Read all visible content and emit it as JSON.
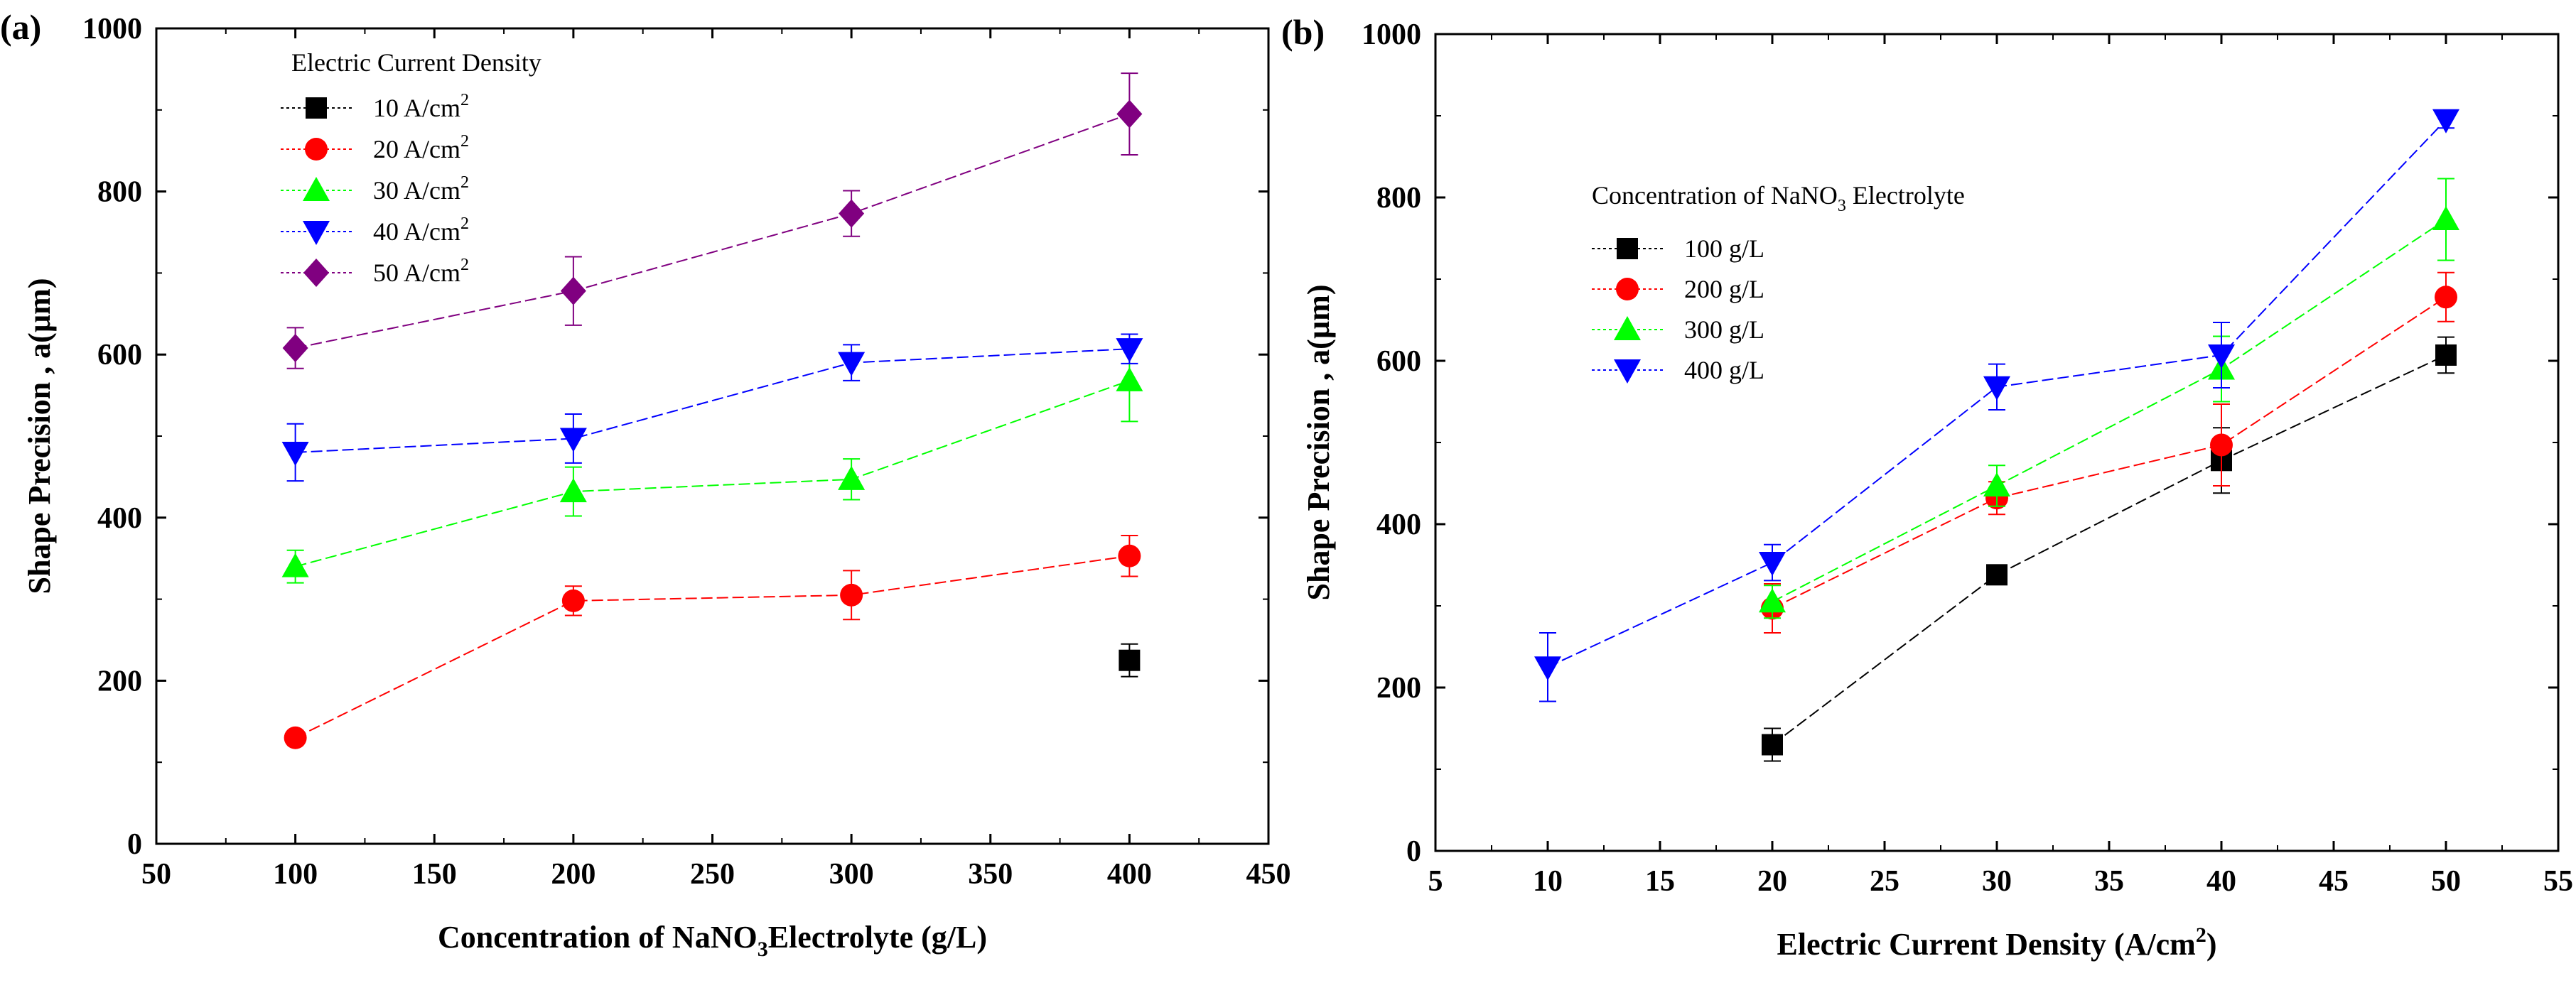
{
  "chart_data": [
    {
      "type": "line",
      "panel_label": "(a)",
      "xlabel_parts": [
        "Concentration of NaNO",
        "3",
        "Electrolyte (g/L)"
      ],
      "ylabel": "Shape Precision , a(µm)",
      "xlim": [
        50,
        450
      ],
      "ylim": [
        0,
        1000
      ],
      "xticks": [
        "50",
        "100",
        "150",
        "200",
        "250",
        "300",
        "350",
        "400",
        "450"
      ],
      "yticks": [
        "0",
        "200",
        "400",
        "600",
        "800",
        "1000"
      ],
      "legend_title": "Electric Current Density",
      "legend_position": "top-left",
      "series": [
        {
          "name": "10 A/cm",
          "sup": "2",
          "marker": "square",
          "color": "#000000",
          "x": [
            400
          ],
          "y": [
            225
          ],
          "err": [
            20
          ]
        },
        {
          "name": "20 A/cm",
          "sup": "2",
          "marker": "circle",
          "color": "#ff0000",
          "x": [
            100,
            200,
            300,
            400
          ],
          "y": [
            130,
            298,
            305,
            353
          ],
          "err": [
            0,
            18,
            30,
            25
          ]
        },
        {
          "name": "30 A/cm",
          "sup": "2",
          "marker": "triangle-up",
          "color": "#00ff00",
          "x": [
            100,
            200,
            300,
            400
          ],
          "y": [
            340,
            432,
            447,
            568
          ],
          "err": [
            20,
            30,
            25,
            50
          ]
        },
        {
          "name": "40 A/cm",
          "sup": "2",
          "marker": "triangle-down",
          "color": "#0000ff",
          "x": [
            100,
            200,
            300,
            400
          ],
          "y": [
            480,
            497,
            590,
            607
          ],
          "err": [
            35,
            30,
            22,
            18
          ]
        },
        {
          "name": "50 A/cm",
          "sup": "2",
          "marker": "diamond",
          "color": "#800080",
          "x": [
            100,
            200,
            300,
            400
          ],
          "y": [
            608,
            678,
            773,
            895
          ],
          "err": [
            25,
            42,
            28,
            50
          ]
        }
      ]
    },
    {
      "type": "line",
      "panel_label": "(b)",
      "xlabel_parts": [
        "Electric Current Density (A/cm",
        "2",
        ")"
      ],
      "ylabel": "Shape Precision , a(µm)",
      "xlim": [
        5,
        55
      ],
      "ylim": [
        0,
        1000
      ],
      "xticks": [
        "5",
        "10",
        "15",
        "20",
        "25",
        "30",
        "35",
        "40",
        "45",
        "50",
        "55"
      ],
      "yticks": [
        "0",
        "200",
        "400",
        "600",
        "800",
        "1000"
      ],
      "legend_title_parts": [
        "Concentration of NaNO",
        "3",
        " Electrolyte"
      ],
      "legend_position": "upper-left",
      "series": [
        {
          "name": "100 g/L",
          "marker": "square",
          "color": "#000000",
          "x": [
            20,
            30,
            40,
            50
          ],
          "y": [
            130,
            338,
            478,
            607
          ],
          "err": [
            20,
            0,
            40,
            22
          ]
        },
        {
          "name": "200 g/L",
          "marker": "circle",
          "color": "#ff0000",
          "x": [
            20,
            30,
            40,
            50
          ],
          "y": [
            297,
            432,
            497,
            678
          ],
          "err": [
            30,
            20,
            50,
            30
          ]
        },
        {
          "name": "300 g/L",
          "marker": "triangle-up",
          "color": "#00ff00",
          "x": [
            20,
            30,
            40,
            50
          ],
          "y": [
            305,
            447,
            590,
            773
          ],
          "err": [
            20,
            25,
            40,
            50
          ]
        },
        {
          "name": "400 g/L",
          "marker": "triangle-down",
          "color": "#0000ff",
          "x": [
            10,
            20,
            30,
            40,
            50
          ],
          "y": [
            225,
            353,
            568,
            607,
            895
          ],
          "err": [
            42,
            22,
            28,
            40,
            10
          ]
        }
      ]
    }
  ]
}
